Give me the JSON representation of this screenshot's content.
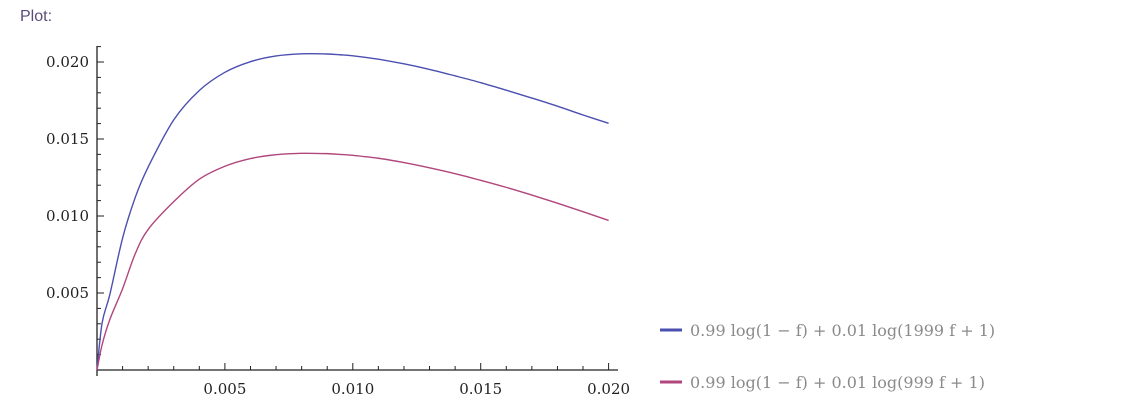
{
  "section_label": "Plot:",
  "chart_data": {
    "type": "line",
    "title": "",
    "xlabel": "",
    "ylabel": "",
    "xlim": [
      0,
      0.0205
    ],
    "ylim": [
      0,
      0.0212
    ],
    "x_ticks": [
      {
        "value": 0.005,
        "label": "0.005"
      },
      {
        "value": 0.01,
        "label": "0.010"
      },
      {
        "value": 0.015,
        "label": "0.015"
      },
      {
        "value": 0.02,
        "label": "0.020"
      }
    ],
    "y_ticks": [
      {
        "value": 0.005,
        "label": "0.005"
      },
      {
        "value": 0.01,
        "label": "0.010"
      },
      {
        "value": 0.015,
        "label": "0.015"
      },
      {
        "value": 0.02,
        "label": "0.020"
      }
    ],
    "grid": false,
    "legend_position": "bottom-right",
    "x": [
      0,
      0.0002,
      0.0005,
      0.001,
      0.0015,
      0.002,
      0.003,
      0.004,
      0.005,
      0.006,
      0.007,
      0.008,
      0.009,
      0.0095,
      0.01,
      0.011,
      0.012,
      0.013,
      0.014,
      0.015,
      0.016,
      0.017,
      0.018,
      0.019,
      0.02
    ],
    "series": [
      {
        "name": "0.99 log(1 − f) + 0.01 log(1999 f + 1)",
        "color": "#4b4fb0",
        "values": [
          0,
          0.00306,
          0.00489,
          0.00856,
          0.01123,
          0.01318,
          0.01624,
          0.01815,
          0.01933,
          0.02002,
          0.02039,
          0.02053,
          0.02052,
          0.02047,
          0.0204,
          0.02018,
          0.01988,
          0.01952,
          0.0191,
          0.01866,
          0.01817,
          0.01766,
          0.01713,
          0.01656,
          0.01602
        ]
      },
      {
        "name": "0.99 log(1 − f) + 0.01 log(999 f + 1)",
        "color": "#b0467c",
        "values": [
          0,
          0.00164,
          0.00327,
          0.00528,
          0.00757,
          0.00913,
          0.01093,
          0.01239,
          0.01323,
          0.01373,
          0.01398,
          0.01407,
          0.01405,
          0.014,
          0.01394,
          0.01375,
          0.01347,
          0.01313,
          0.01275,
          0.01232,
          0.01186,
          0.01136,
          0.01083,
          0.01028,
          0.00971
        ]
      }
    ]
  }
}
